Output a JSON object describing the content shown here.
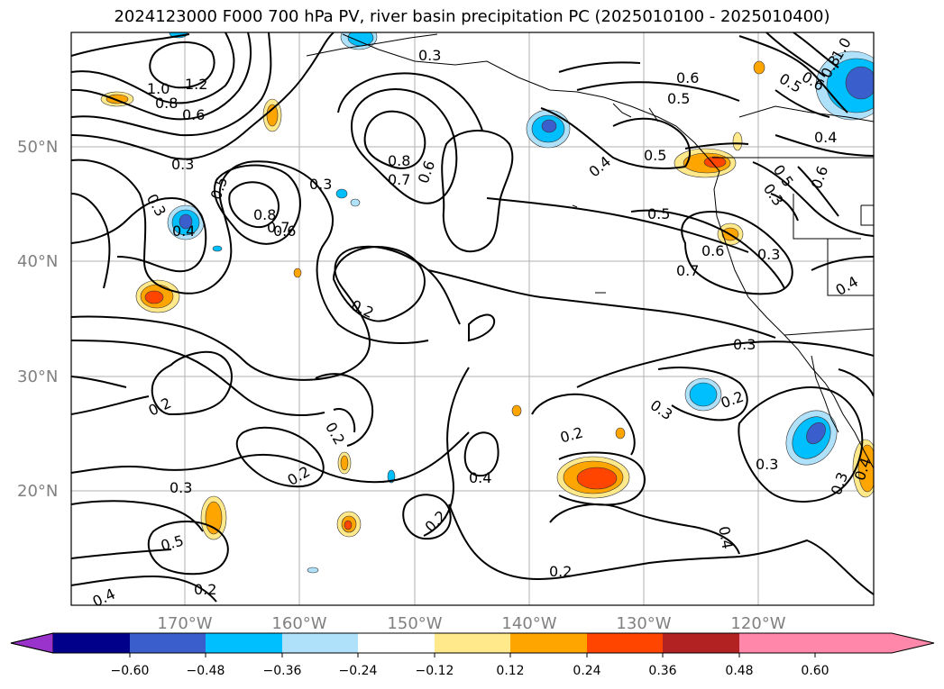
{
  "title": "2024123000 F000 700 hPa PV, river basin precipitation PC (2025010100 - 2025010400)",
  "map": {
    "lat_labels": [
      "50°N",
      "40°N",
      "30°N",
      "20°N"
    ],
    "lon_labels": [
      "170°W",
      "160°W",
      "150°W",
      "140°W",
      "130°W",
      "120°W"
    ],
    "contour_labels": [
      "1.2",
      "1.0",
      "0.8",
      "0.6",
      "0.3",
      "0.5",
      "0.3",
      "0.4",
      "0.8",
      "0.7",
      "0.6",
      "0.3",
      "0.8",
      "0.7",
      "0.6",
      "0.3",
      "0.6",
      "0.5",
      "0.4",
      "0.5",
      "0.5",
      "0.6",
      "0.7",
      "0.3",
      "0.4",
      "0.2",
      "0.3",
      "0.2",
      "0.2",
      "0.3",
      "0.2",
      "0.2",
      "0.3",
      "0.5",
      "0.2",
      "0.4",
      "0.2",
      "0.4",
      "0.2",
      "0.3",
      "0.2",
      "0.4",
      "0.3",
      "0.3",
      "0.4",
      "0.5",
      "0.4",
      "0.6",
      "0.8",
      "1.0",
      "0.5",
      "0.6"
    ]
  },
  "colorbar": {
    "colors": [
      "#9933cc",
      "#00008b",
      "#3a5fcd",
      "#00bfff",
      "#afe1fa",
      "#ffffff",
      "#ffe98a",
      "#ffa500",
      "#ff4500",
      "#b22222",
      "#ff88aa"
    ],
    "tick_labels": [
      "−0.60",
      "−0.48",
      "−0.36",
      "−0.24",
      "−0.12",
      "0.12",
      "0.24",
      "0.36",
      "0.48",
      "0.60"
    ]
  }
}
